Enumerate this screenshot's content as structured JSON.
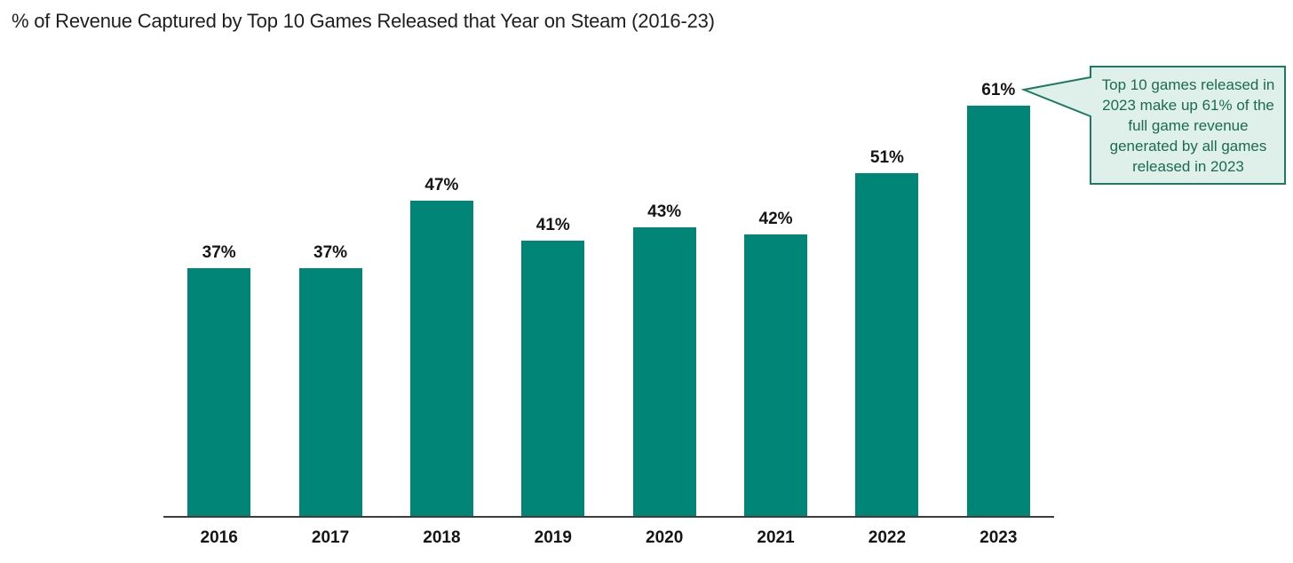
{
  "chart_data": {
    "type": "bar",
    "title": "% of Revenue Captured by Top 10 Games Released that Year on Steam (2016-23)",
    "categories": [
      "2016",
      "2017",
      "2018",
      "2019",
      "2020",
      "2021",
      "2022",
      "2023"
    ],
    "values": [
      37,
      37,
      47,
      41,
      43,
      42,
      51,
      61
    ],
    "value_labels": [
      "37%",
      "37%",
      "47%",
      "41%",
      "43%",
      "42%",
      "51%",
      "61%"
    ],
    "xlabel": "",
    "ylabel": "",
    "ylim": [
      0,
      65
    ],
    "grid": false,
    "legend": "none",
    "y_axis_ticks_visible": false,
    "bar_color": "#008577",
    "axis_line_color": "#3d3d3d",
    "label_color": "#151515",
    "annotation": {
      "text": "Top 10 games released in 2023 make up 61% of the full game revenue generated by all games released in 2023",
      "points_to_category": "2023",
      "background_color": "#def0e9",
      "border_color": "#1e7b63",
      "text_color": "#1b6b50"
    }
  }
}
